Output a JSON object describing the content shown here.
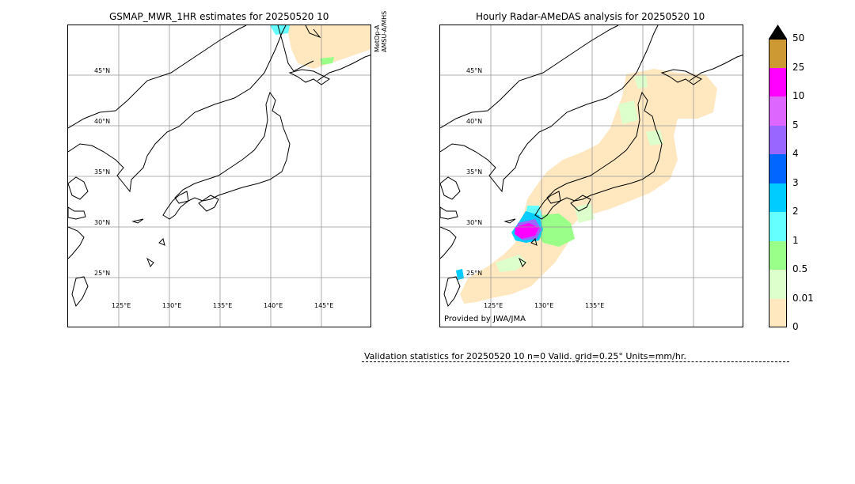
{
  "left_panel": {
    "title": "GSMAP_MWR_1HR estimates for 20250520 10",
    "lat_labels": [
      "45°N",
      "40°N",
      "35°N",
      "30°N",
      "25°N"
    ],
    "lon_labels": [
      "125°E",
      "130°E",
      "135°E",
      "140°E",
      "145°E"
    ],
    "satellite_note": [
      "MetOp-A",
      "AMSU-A/MHS"
    ]
  },
  "right_panel": {
    "title": "Hourly Radar-AMeDAS analysis for 20250520 10",
    "lat_labels": [
      "45°N",
      "40°N",
      "35°N",
      "30°N",
      "25°N"
    ],
    "lon_labels": [
      "125°E",
      "130°E",
      "135°E"
    ],
    "credit": "Provided by JWA/JMA"
  },
  "colorbar": {
    "ticks": [
      "50",
      "25",
      "10",
      "5",
      "4",
      "3",
      "2",
      "1",
      "0.5",
      "0.01",
      "0"
    ],
    "colors": [
      "#cc9933",
      "#ff00ff",
      "#dd66ff",
      "#9966ff",
      "#0066ff",
      "#00ccff",
      "#66ffff",
      "#99ff88",
      "#ddffcc",
      "#ffe8c0"
    ],
    "extend_color": "#000000"
  },
  "stats_text": "Validation statistics for 20250520 10  n=0 Valid. grid=0.25° Units=mm/hr."
}
